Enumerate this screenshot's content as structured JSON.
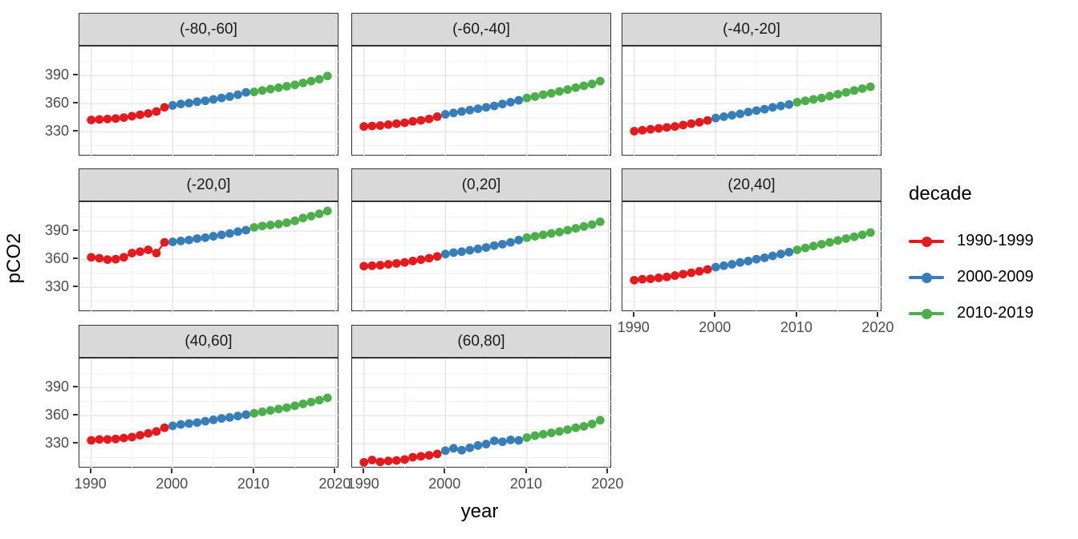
{
  "axes": {
    "y_title": "pCO2",
    "x_title": "year",
    "y_ticks": [
      390,
      360,
      330
    ],
    "x_ticks": [
      1990,
      2000,
      2010,
      2020
    ]
  },
  "legend": {
    "title": "decade",
    "entries": [
      {
        "label": "1990-1999",
        "color": "#e41a1c"
      },
      {
        "label": "2000-2009",
        "color": "#377eb8"
      },
      {
        "label": "2010-2019",
        "color": "#4daf4a"
      }
    ]
  },
  "chart_data": {
    "type": "scatter",
    "title": "",
    "xlabel": "year",
    "ylabel": "pCO2",
    "xlim": [
      1988.55,
      2020.45
    ],
    "ylim": [
      303.5,
      421
    ],
    "grid": {
      "on": true,
      "x_major": [
        1990,
        2000,
        2010,
        2020
      ],
      "x_minor": [
        1995,
        2005,
        2015
      ],
      "y_major": [
        330,
        360,
        390
      ],
      "y_minor": [
        315,
        345,
        375,
        405
      ]
    },
    "legend_position": "right",
    "x": [
      1990,
      1991,
      1992,
      1993,
      1994,
      1995,
      1996,
      1997,
      1998,
      1999,
      2000,
      2001,
      2002,
      2003,
      2004,
      2005,
      2006,
      2007,
      2008,
      2009,
      2010,
      2011,
      2012,
      2013,
      2014,
      2015,
      2016,
      2017,
      2018,
      2019
    ],
    "series_decades": [
      {
        "name": "1990-1999",
        "color": "#e41a1c",
        "start": 1990,
        "end": 1999
      },
      {
        "name": "2000-2009",
        "color": "#377eb8",
        "start": 2000,
        "end": 2009
      },
      {
        "name": "2010-2019",
        "color": "#4daf4a",
        "start": 2010,
        "end": 2019
      }
    ],
    "facets": [
      {
        "label": "(-80,-60]",
        "values": [
          342.5,
          343,
          343.5,
          344,
          345,
          346.5,
          348,
          349.5,
          351.5,
          356,
          358,
          359.5,
          360.5,
          362,
          363,
          364.5,
          366,
          367.5,
          369.5,
          372,
          372.5,
          374,
          375.5,
          377,
          378.5,
          380,
          382,
          384,
          386,
          389.5
        ]
      },
      {
        "label": "(-60,-40]",
        "values": [
          335.5,
          336,
          336.5,
          337.5,
          338.5,
          339.5,
          341,
          342,
          343.5,
          346,
          348.5,
          350,
          351.5,
          353,
          354.5,
          356,
          357.5,
          359.5,
          361.5,
          363.5,
          366,
          367.5,
          369.5,
          371,
          373,
          375,
          377,
          379,
          381,
          384
        ]
      },
      {
        "label": "(-40,-20]",
        "values": [
          330.5,
          331.5,
          332.5,
          333.5,
          334.5,
          335.5,
          337,
          338.5,
          340,
          342,
          344.5,
          346,
          347.5,
          349,
          351,
          352.5,
          354,
          356,
          357.5,
          359,
          361.5,
          363,
          364.5,
          366,
          368,
          370,
          372,
          374,
          376,
          378
        ]
      },
      {
        "label": "(-20,0]",
        "values": [
          362,
          361,
          359.5,
          360,
          362,
          366.5,
          368,
          370,
          366.5,
          378,
          378.5,
          379.5,
          380.5,
          382,
          383,
          384.5,
          386,
          387.5,
          389.5,
          391,
          394,
          395.5,
          396.5,
          397.5,
          399,
          401,
          404,
          406,
          408.5,
          411.5
        ]
      },
      {
        "label": "(0,20]",
        "values": [
          352.5,
          353,
          353.5,
          354.5,
          355.5,
          356.5,
          358,
          359.5,
          361,
          363,
          365.5,
          367,
          368,
          369.5,
          371,
          372.5,
          374.5,
          376,
          378,
          380.5,
          383,
          384.5,
          386,
          387.5,
          389,
          391,
          393,
          395,
          397,
          400
        ]
      },
      {
        "label": "(20,40]",
        "values": [
          337.5,
          338.5,
          339,
          340,
          341,
          342.5,
          344,
          345.5,
          347,
          349,
          351.5,
          353,
          354.5,
          356.5,
          358,
          360,
          361.5,
          363.5,
          365.5,
          367.5,
          370,
          372,
          374,
          376,
          378,
          380,
          382,
          384,
          386,
          388.5
        ]
      },
      {
        "label": "(40,60]",
        "values": [
          333.5,
          334.5,
          334.5,
          335,
          336,
          337,
          339,
          341,
          343,
          347,
          349,
          350.5,
          351.5,
          352.5,
          354,
          355.5,
          357,
          358,
          359.5,
          361,
          362.5,
          364,
          365.5,
          367,
          368.5,
          370.5,
          372.5,
          374.5,
          376.5,
          379
        ]
      },
      {
        "label": "(60,80]",
        "values": [
          310,
          312.5,
          310.5,
          311.5,
          312,
          313,
          315.5,
          316.5,
          317.5,
          319,
          322.5,
          325,
          323,
          325.5,
          328,
          329.5,
          333,
          332,
          334,
          333.5,
          336.5,
          338.5,
          340,
          341.5,
          343,
          345,
          347,
          348.5,
          351,
          355
        ]
      }
    ]
  }
}
